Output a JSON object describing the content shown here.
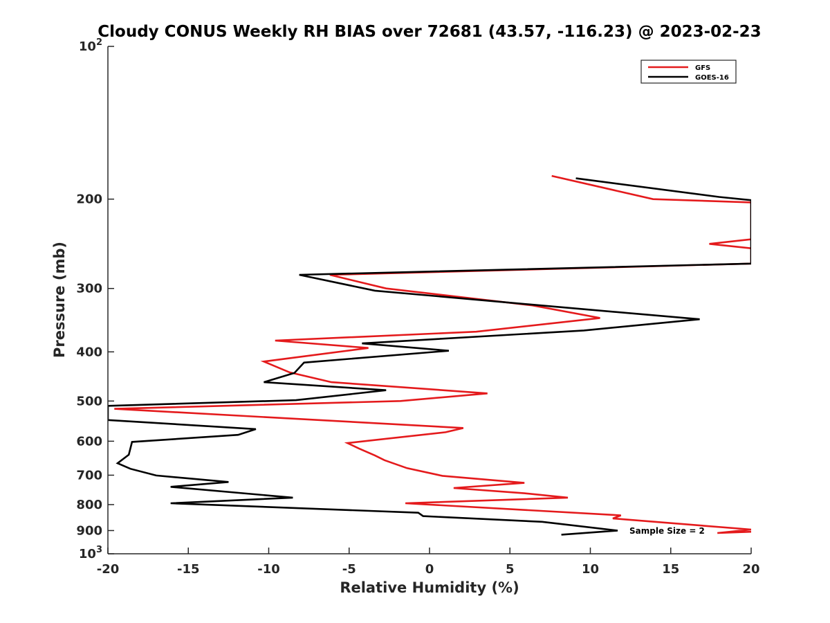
{
  "chart_data": {
    "type": "line",
    "title": "Cloudy CONUS Weekly RH BIAS over 72681 (43.57, -116.23) @ 2023-02-23",
    "xlabel": "Relative Humidity (%)",
    "ylabel": "Pressure (mb)",
    "xlim": [
      -20,
      20
    ],
    "ylim": [
      100,
      1000
    ],
    "yscale": "log",
    "y_reversed": true,
    "grid": false,
    "legend": "top-right",
    "x_ticks": [
      "-20",
      "-15",
      "-10",
      "-5",
      "0",
      "5",
      "10",
      "15",
      "20"
    ],
    "y_ticks": [
      {
        "value": 100,
        "base": "10",
        "exp": "2"
      },
      {
        "value": 200,
        "label": "200"
      },
      {
        "value": 300,
        "label": "300"
      },
      {
        "value": 400,
        "label": "400"
      },
      {
        "value": 500,
        "label": "500"
      },
      {
        "value": 600,
        "label": "600"
      },
      {
        "value": 700,
        "label": "700"
      },
      {
        "value": 800,
        "label": "800"
      },
      {
        "value": 900,
        "label": "900"
      },
      {
        "value": 1000,
        "base": "10",
        "exp": "3"
      }
    ],
    "series": [
      {
        "name": "GFS",
        "color": "#e41a1c",
        "points": [
          [
            7.6,
            180
          ],
          [
            13.9,
            200
          ],
          [
            20.0,
            203
          ],
          [
            20.0,
            240
          ],
          [
            17.4,
            245
          ],
          [
            20.0,
            250
          ],
          [
            20.0,
            268
          ],
          [
            -6.2,
            282
          ],
          [
            -2.7,
            300
          ],
          [
            6.4,
            324
          ],
          [
            10.6,
            343
          ],
          [
            2.9,
            365
          ],
          [
            -9.6,
            380
          ],
          [
            -3.8,
            393
          ],
          [
            -10.3,
            418
          ],
          [
            -8.7,
            439
          ],
          [
            -6.1,
            459
          ],
          [
            3.6,
            483
          ],
          [
            -1.8,
            500
          ],
          [
            -19.6,
            518
          ],
          [
            2.1,
            565
          ],
          [
            1.0,
            576
          ],
          [
            -5.1,
            605
          ],
          [
            -4.4,
            620
          ],
          [
            -3.4,
            640
          ],
          [
            -2.8,
            654
          ],
          [
            -1.4,
            678
          ],
          [
            0.8,
            702
          ],
          [
            5.9,
            725
          ],
          [
            1.5,
            742
          ],
          [
            5.9,
            760
          ],
          [
            8.6,
            775
          ],
          [
            -1.5,
            795
          ],
          [
            11.9,
            840
          ],
          [
            11.4,
            852
          ],
          [
            20.0,
            896
          ],
          [
            17.9,
            910
          ],
          [
            20.0,
            905
          ]
        ]
      },
      {
        "name": "GOES-16",
        "color": "#000000",
        "points": [
          [
            9.1,
            182
          ],
          [
            18.0,
            198
          ],
          [
            20.0,
            201
          ],
          [
            20.0,
            268
          ],
          [
            -8.1,
            282
          ],
          [
            -3.4,
            303
          ],
          [
            9.3,
            329
          ],
          [
            16.8,
            345
          ],
          [
            9.6,
            363
          ],
          [
            -4.2,
            385
          ],
          [
            1.2,
            398
          ],
          [
            -7.8,
            420
          ],
          [
            -8.4,
            440
          ],
          [
            -10.3,
            459
          ],
          [
            -2.7,
            476
          ],
          [
            -8.3,
            498
          ],
          [
            -20.0,
            511
          ],
          [
            -20.0,
            545
          ],
          [
            -10.8,
            568
          ],
          [
            -11.9,
            583
          ],
          [
            -18.5,
            602
          ],
          [
            -18.7,
            638
          ],
          [
            -19.4,
            663
          ],
          [
            -18.6,
            680
          ],
          [
            -17.0,
            701
          ],
          [
            -12.5,
            722
          ],
          [
            -16.1,
            738
          ],
          [
            -8.5,
            775
          ],
          [
            -16.1,
            795
          ],
          [
            -0.7,
            830
          ],
          [
            -0.4,
            843
          ],
          [
            7.0,
            865
          ],
          [
            11.7,
            900
          ],
          [
            8.2,
            917
          ]
        ]
      }
    ],
    "annotation": "Sample Size = 2"
  }
}
